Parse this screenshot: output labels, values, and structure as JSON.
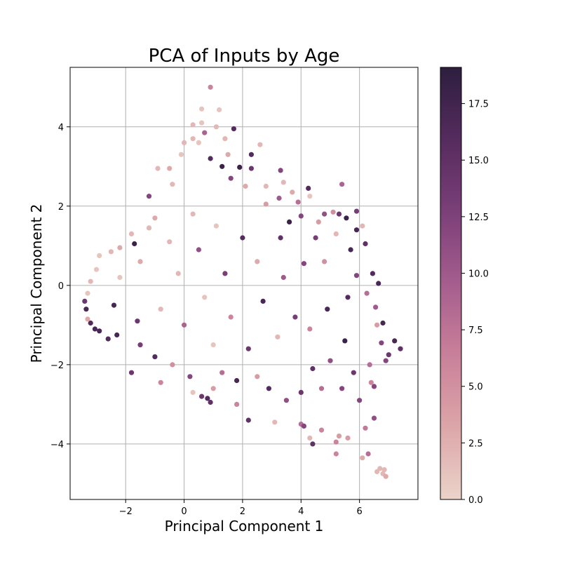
{
  "chart_data": {
    "type": "scatter",
    "title": "PCA of Inputs by Age",
    "xlabel": "Principal Component 1",
    "ylabel": "Principal Component 2",
    "xlim": [
      -3.9,
      8.0
    ],
    "ylim": [
      -5.4,
      5.5
    ],
    "xticks": [
      -2,
      0,
      2,
      4,
      6
    ],
    "yticks": [
      -4,
      -2,
      0,
      2,
      4
    ],
    "grid": true,
    "colorbar": {
      "range": [
        0.0,
        19.1
      ],
      "ticks": [
        0.0,
        2.5,
        5.0,
        7.5,
        10.0,
        12.5,
        15.0,
        17.5
      ],
      "tick_labels": [
        "0.0",
        "2.5",
        "5.0",
        "7.5",
        "10.0",
        "12.5",
        "15.0",
        "17.5"
      ],
      "colormap_stops": [
        "#ebd3ca",
        "#dca6a8",
        "#c9809a",
        "#a55d8e",
        "#7b3f78",
        "#552b5e",
        "#2d1e3e"
      ]
    },
    "points": [
      {
        "x": 0.9,
        "y": 5.0,
        "c": 6
      },
      {
        "x": 0.6,
        "y": 4.45,
        "c": 1
      },
      {
        "x": 1.2,
        "y": 4.43,
        "c": 1
      },
      {
        "x": 1.7,
        "y": 3.95,
        "c": 16
      },
      {
        "x": 0.5,
        "y": 3.6,
        "c": 1
      },
      {
        "x": 1.5,
        "y": 3.3,
        "c": 3
      },
      {
        "x": 2.3,
        "y": 3.3,
        "c": 16
      },
      {
        "x": 2.6,
        "y": 3.55,
        "c": 2
      },
      {
        "x": 1.9,
        "y": 2.98,
        "c": 18
      },
      {
        "x": 2.3,
        "y": 2.95,
        "c": 14
      },
      {
        "x": 3.3,
        "y": 2.9,
        "c": 12
      },
      {
        "x": 3.4,
        "y": 2.6,
        "c": 2
      },
      {
        "x": 4.25,
        "y": 2.45,
        "c": 16
      },
      {
        "x": 4.3,
        "y": 2.25,
        "c": 1
      },
      {
        "x": 5.4,
        "y": 2.55,
        "c": 9
      },
      {
        "x": 3.9,
        "y": 2.1,
        "c": 8
      },
      {
        "x": 3.25,
        "y": 2.2,
        "c": 10
      },
      {
        "x": 2.8,
        "y": 2.05,
        "c": 4
      },
      {
        "x": 4.8,
        "y": 1.8,
        "c": 11
      },
      {
        "x": 5.1,
        "y": 1.85,
        "c": 5
      },
      {
        "x": 5.3,
        "y": 1.8,
        "c": 14
      },
      {
        "x": 5.9,
        "y": 1.87,
        "c": 13
      },
      {
        "x": 5.55,
        "y": 1.7,
        "c": 18
      },
      {
        "x": 6.1,
        "y": 1.5,
        "c": 2
      },
      {
        "x": 5.9,
        "y": 1.4,
        "c": 17
      },
      {
        "x": 4.6,
        "y": 1.6,
        "c": 4
      },
      {
        "x": 4.0,
        "y": 1.75,
        "c": 12
      },
      {
        "x": 3.6,
        "y": 1.6,
        "c": 18
      },
      {
        "x": 6.2,
        "y": 1.05,
        "c": 15
      },
      {
        "x": 6.45,
        "y": 0.3,
        "c": 16
      },
      {
        "x": 6.65,
        "y": 0.05,
        "c": 17
      },
      {
        "x": 6.25,
        "y": -0.2,
        "c": 8
      },
      {
        "x": 6.55,
        "y": -0.55,
        "c": 10
      },
      {
        "x": 6.8,
        "y": -0.95,
        "c": 17
      },
      {
        "x": 6.6,
        "y": -1.0,
        "c": 4
      },
      {
        "x": 7.2,
        "y": -1.4,
        "c": 17
      },
      {
        "x": 7.4,
        "y": -1.6,
        "c": 15
      },
      {
        "x": 7.0,
        "y": -1.75,
        "c": 14
      },
      {
        "x": 6.9,
        "y": -1.9,
        "c": 12
      },
      {
        "x": 6.75,
        "y": -1.45,
        "c": 12
      },
      {
        "x": 6.35,
        "y": -2.0,
        "c": 8
      },
      {
        "x": 6.5,
        "y": -2.55,
        "c": 12
      },
      {
        "x": 6.4,
        "y": -2.45,
        "c": 6
      },
      {
        "x": 6.0,
        "y": -2.9,
        "c": 12
      },
      {
        "x": 6.5,
        "y": -3.35,
        "c": 11
      },
      {
        "x": 6.2,
        "y": -3.6,
        "c": 7
      },
      {
        "x": 5.6,
        "y": -3.85,
        "c": 4
      },
      {
        "x": 5.3,
        "y": -3.8,
        "c": 4
      },
      {
        "x": 5.2,
        "y": -3.95,
        "c": 6
      },
      {
        "x": 4.3,
        "y": -3.85,
        "c": 2
      },
      {
        "x": 4.7,
        "y": -3.65,
        "c": 6
      },
      {
        "x": 4.4,
        "y": -4.0,
        "c": 15
      },
      {
        "x": 5.2,
        "y": -4.25,
        "c": 6
      },
      {
        "x": 6.3,
        "y": -4.25,
        "c": 8
      },
      {
        "x": 6.1,
        "y": -4.35,
        "c": 3
      },
      {
        "x": 6.6,
        "y": -4.7,
        "c": 2
      },
      {
        "x": 6.7,
        "y": -4.62,
        "c": 2
      },
      {
        "x": 6.8,
        "y": -4.75,
        "c": 2
      },
      {
        "x": 6.9,
        "y": -4.82,
        "c": 3
      },
      {
        "x": 6.85,
        "y": -4.65,
        "c": 2
      },
      {
        "x": 2.2,
        "y": -3.4,
        "c": 15
      },
      {
        "x": 3.1,
        "y": -3.45,
        "c": 2
      },
      {
        "x": 4.0,
        "y": -3.5,
        "c": 8
      },
      {
        "x": 4.1,
        "y": -3.55,
        "c": 12
      },
      {
        "x": 1.8,
        "y": -3.0,
        "c": 6
      },
      {
        "x": 1.0,
        "y": -2.6,
        "c": 4
      },
      {
        "x": 0.8,
        "y": -2.85,
        "c": 16
      },
      {
        "x": 0.9,
        "y": -2.95,
        "c": 15
      },
      {
        "x": 0.6,
        "y": -2.8,
        "c": 14
      },
      {
        "x": 0.3,
        "y": -2.7,
        "c": 1
      },
      {
        "x": -0.8,
        "y": -2.45,
        "c": 6
      },
      {
        "x": -1.8,
        "y": -2.2,
        "c": 14
      },
      {
        "x": -1.5,
        "y": -1.5,
        "c": 13
      },
      {
        "x": -2.3,
        "y": -1.25,
        "c": 17
      },
      {
        "x": -2.6,
        "y": -1.35,
        "c": 16
      },
      {
        "x": -2.9,
        "y": -1.15,
        "c": 17
      },
      {
        "x": -3.05,
        "y": -1.1,
        "c": 17
      },
      {
        "x": -3.2,
        "y": -0.95,
        "c": 16
      },
      {
        "x": -3.3,
        "y": -0.85,
        "c": 3
      },
      {
        "x": -3.35,
        "y": -0.6,
        "c": 17
      },
      {
        "x": -3.4,
        "y": -0.4,
        "c": 14
      },
      {
        "x": -3.3,
        "y": -0.2,
        "c": 1
      },
      {
        "x": -3.2,
        "y": 0.1,
        "c": 2
      },
      {
        "x": -3.0,
        "y": 0.4,
        "c": 1
      },
      {
        "x": -2.9,
        "y": 0.75,
        "c": 1
      },
      {
        "x": -2.5,
        "y": 0.85,
        "c": 2
      },
      {
        "x": -2.2,
        "y": 0.95,
        "c": 3
      },
      {
        "x": -1.8,
        "y": 1.3,
        "c": 2
      },
      {
        "x": -1.7,
        "y": 1.05,
        "c": 18
      },
      {
        "x": -1.2,
        "y": 1.45,
        "c": 2
      },
      {
        "x": -1.2,
        "y": 2.25,
        "c": 12
      },
      {
        "x": -1.0,
        "y": 1.7,
        "c": 3
      },
      {
        "x": -0.4,
        "y": 2.55,
        "c": 2
      },
      {
        "x": -0.9,
        "y": 2.95,
        "c": 2
      },
      {
        "x": -0.5,
        "y": 2.95,
        "c": 3
      },
      {
        "x": -0.1,
        "y": 3.3,
        "c": 1
      },
      {
        "x": 0.0,
        "y": 3.6,
        "c": 2
      },
      {
        "x": 0.3,
        "y": 3.7,
        "c": 2
      },
      {
        "x": 0.3,
        "y": 4.05,
        "c": 2
      },
      {
        "x": 0.6,
        "y": 4.1,
        "c": 1
      },
      {
        "x": 0.7,
        "y": 3.85,
        "c": 9
      },
      {
        "x": 1.1,
        "y": 4.0,
        "c": 2
      },
      {
        "x": 0.9,
        "y": 3.2,
        "c": 16
      },
      {
        "x": 1.4,
        "y": 3.7,
        "c": 2
      },
      {
        "x": 1.3,
        "y": 3.0,
        "c": 18
      },
      {
        "x": 1.6,
        "y": 2.7,
        "c": 12
      },
      {
        "x": 2.1,
        "y": 2.5,
        "c": 3
      },
      {
        "x": 2.8,
        "y": 2.5,
        "c": 2
      },
      {
        "x": 3.7,
        "y": 2.35,
        "c": 3
      },
      {
        "x": 3.3,
        "y": 1.2,
        "c": 15
      },
      {
        "x": 4.5,
        "y": 1.2,
        "c": 13
      },
      {
        "x": 5.2,
        "y": 1.3,
        "c": 2
      },
      {
        "x": 5.7,
        "y": 0.9,
        "c": 17
      },
      {
        "x": 4.1,
        "y": 0.55,
        "c": 12
      },
      {
        "x": 4.8,
        "y": 0.6,
        "c": 5
      },
      {
        "x": 5.9,
        "y": 0.25,
        "c": 12
      },
      {
        "x": 5.6,
        "y": -0.3,
        "c": 16
      },
      {
        "x": 4.9,
        "y": -0.6,
        "c": 17
      },
      {
        "x": 4.3,
        "y": -1.1,
        "c": 6
      },
      {
        "x": 5.5,
        "y": -1.4,
        "c": 18
      },
      {
        "x": 5.0,
        "y": -1.9,
        "c": 11
      },
      {
        "x": 4.4,
        "y": -2.1,
        "c": 15
      },
      {
        "x": 5.8,
        "y": -2.2,
        "c": 14
      },
      {
        "x": 5.4,
        "y": -2.6,
        "c": 12
      },
      {
        "x": 4.7,
        "y": -2.6,
        "c": 8
      },
      {
        "x": 4.0,
        "y": -2.7,
        "c": 14
      },
      {
        "x": 3.5,
        "y": -2.9,
        "c": 11
      },
      {
        "x": 2.9,
        "y": -2.6,
        "c": 16
      },
      {
        "x": 2.5,
        "y": -2.3,
        "c": 4
      },
      {
        "x": 1.8,
        "y": -2.4,
        "c": 17
      },
      {
        "x": 1.3,
        "y": -2.2,
        "c": 8
      },
      {
        "x": 0.2,
        "y": -2.3,
        "c": 12
      },
      {
        "x": -0.4,
        "y": -2.0,
        "c": 5
      },
      {
        "x": -1.0,
        "y": -1.8,
        "c": 16
      },
      {
        "x": 2.2,
        "y": -1.6,
        "c": 14
      },
      {
        "x": 3.2,
        "y": -1.3,
        "c": 2
      },
      {
        "x": 3.8,
        "y": -0.8,
        "c": 13
      },
      {
        "x": 2.7,
        "y": -0.4,
        "c": 17
      },
      {
        "x": 3.4,
        "y": 0.2,
        "c": 10
      },
      {
        "x": 2.5,
        "y": 0.6,
        "c": 3
      },
      {
        "x": 2.0,
        "y": 1.2,
        "c": 16
      },
      {
        "x": 1.1,
        "y": 1.5,
        "c": 1
      },
      {
        "x": 0.3,
        "y": 1.8,
        "c": 2
      },
      {
        "x": -0.5,
        "y": 1.1,
        "c": 2
      },
      {
        "x": -1.5,
        "y": 0.6,
        "c": 3
      },
      {
        "x": -2.2,
        "y": 0.2,
        "c": 1
      },
      {
        "x": -2.4,
        "y": -0.5,
        "c": 17
      },
      {
        "x": -1.6,
        "y": -0.9,
        "c": 14
      },
      {
        "x": -0.8,
        "y": -0.6,
        "c": 2
      },
      {
        "x": 0.0,
        "y": -1.0,
        "c": 9
      },
      {
        "x": 0.7,
        "y": -0.3,
        "c": 1
      },
      {
        "x": 1.4,
        "y": 0.3,
        "c": 13
      },
      {
        "x": 0.5,
        "y": 0.9,
        "c": 11
      },
      {
        "x": -0.2,
        "y": 0.3,
        "c": 2
      },
      {
        "x": 1.6,
        "y": -0.8,
        "c": 6
      },
      {
        "x": 1.0,
        "y": -1.5,
        "c": 1
      }
    ]
  }
}
